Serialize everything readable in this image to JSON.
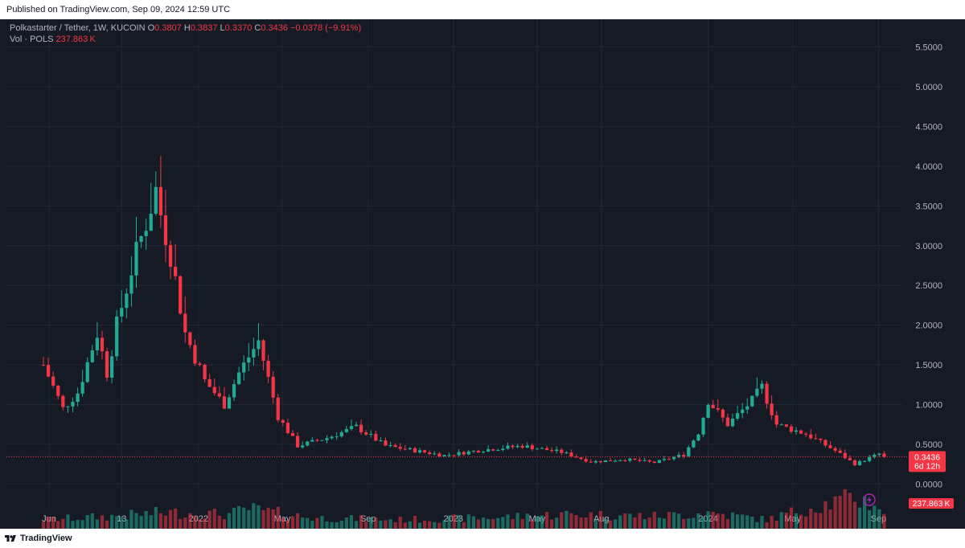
{
  "header": {
    "published": "Published on TradingView.com, Sep 09, 2024 12:59 UTC"
  },
  "legend": {
    "symbol": "Polkastarter / Tether, 1W, KUCOIN",
    "o_label": "O",
    "o_value": "0.3807",
    "h_label": "H",
    "h_value": "0.3837",
    "l_label": "L",
    "l_value": "0.3370",
    "c_label": "C",
    "c_value": "0.3436",
    "change": "−0.0378 (−9.91%)",
    "vol_label": "Vol · POLS",
    "vol_value": "237.863 K"
  },
  "footer": {
    "brand": "TradingView",
    "logo_icon": "tradingview-logo-icon"
  },
  "colors": {
    "up": "#22ab94",
    "down": "#f23645",
    "background": "#161a25",
    "grid": "#232733",
    "text": "#b2b5be"
  },
  "chart_data": {
    "type": "candlestick",
    "interval": "1W",
    "price_axis": {
      "ticks": [
        "0.0000",
        "0.5000",
        "1.0000",
        "1.5000",
        "2.0000",
        "2.5000",
        "3.0000",
        "3.5000",
        "4.0000",
        "4.5000",
        "5.0000",
        "5.5000"
      ],
      "range": [
        -0.32,
        5.85
      ]
    },
    "time_axis": [
      {
        "label": "Jun",
        "date": "2021-06-01"
      },
      {
        "label": "13",
        "date": "2021-09-13"
      },
      {
        "label": "2022",
        "date": "2022-01-01"
      },
      {
        "label": "May",
        "date": "2022-05-01"
      },
      {
        "label": "Sep",
        "date": "2022-09-01"
      },
      {
        "label": "2023",
        "date": "2023-01-01"
      },
      {
        "label": "May",
        "date": "2023-05-01"
      },
      {
        "label": "Aug",
        "date": "2023-08-01"
      },
      {
        "label": "2024",
        "date": "2024-01-01"
      },
      {
        "label": "May",
        "date": "2024-05-01"
      },
      {
        "label": "Sep",
        "date": "2024-09-01"
      }
    ],
    "price_key_points": [
      [
        "2021-05-24",
        1.5
      ],
      [
        "2021-06-21",
        0.95
      ],
      [
        "2021-07-12",
        1.15
      ],
      [
        "2021-08-09",
        1.9
      ],
      [
        "2021-08-23",
        1.4
      ],
      [
        "2021-09-06",
        2.0
      ],
      [
        "2021-09-27",
        2.7
      ],
      [
        "2021-10-18",
        3.3
      ],
      [
        "2021-11-01",
        3.7
      ],
      [
        "2021-11-08",
        3.4
      ],
      [
        "2021-11-22",
        2.9
      ],
      [
        "2021-12-13",
        1.9
      ],
      [
        "2022-01-10",
        1.3
      ],
      [
        "2022-02-07",
        1.0
      ],
      [
        "2022-02-28",
        1.4
      ],
      [
        "2022-03-28",
        1.8
      ],
      [
        "2022-04-25",
        0.85
      ],
      [
        "2022-05-23",
        0.48
      ],
      [
        "2022-07-04",
        0.58
      ],
      [
        "2022-08-15",
        0.72
      ],
      [
        "2022-09-26",
        0.48
      ],
      [
        "2022-11-07",
        0.42
      ],
      [
        "2022-12-19",
        0.36
      ],
      [
        "2023-02-13",
        0.43
      ],
      [
        "2023-04-10",
        0.48
      ],
      [
        "2023-06-05",
        0.4
      ],
      [
        "2023-07-17",
        0.28
      ],
      [
        "2023-09-04",
        0.31
      ],
      [
        "2023-10-16",
        0.27
      ],
      [
        "2023-11-27",
        0.37
      ],
      [
        "2023-12-18",
        0.65
      ],
      [
        "2024-01-01",
        1.05
      ],
      [
        "2024-01-29",
        0.75
      ],
      [
        "2024-03-04",
        1.05
      ],
      [
        "2024-03-18",
        1.22
      ],
      [
        "2024-04-08",
        0.75
      ],
      [
        "2024-05-20",
        0.63
      ],
      [
        "2024-07-01",
        0.42
      ],
      [
        "2024-07-29",
        0.25
      ],
      [
        "2024-09-02",
        0.38
      ],
      [
        "2024-09-09",
        0.3436
      ]
    ],
    "volume_key_points": [
      [
        "2021-05-24",
        0.25
      ],
      [
        "2021-09-06",
        0.35
      ],
      [
        "2021-11-15",
        0.45
      ],
      [
        "2022-02-14",
        0.4
      ],
      [
        "2022-03-14",
        0.55
      ],
      [
        "2022-06-13",
        0.3
      ],
      [
        "2022-10-17",
        0.25
      ],
      [
        "2023-02-13",
        0.3
      ],
      [
        "2023-06-12",
        0.4
      ],
      [
        "2023-10-16",
        0.35
      ],
      [
        "2023-12-04",
        0.4
      ],
      [
        "2024-01-01",
        0.45
      ],
      [
        "2024-03-25",
        0.25
      ],
      [
        "2024-05-27",
        0.6
      ],
      [
        "2024-07-29",
        0.85
      ],
      [
        "2024-09-09",
        0.6
      ]
    ],
    "last_price": "0.3436",
    "countdown": "6d 12h",
    "last_volume": "237.863 K",
    "last_change_pct": -9.91
  }
}
